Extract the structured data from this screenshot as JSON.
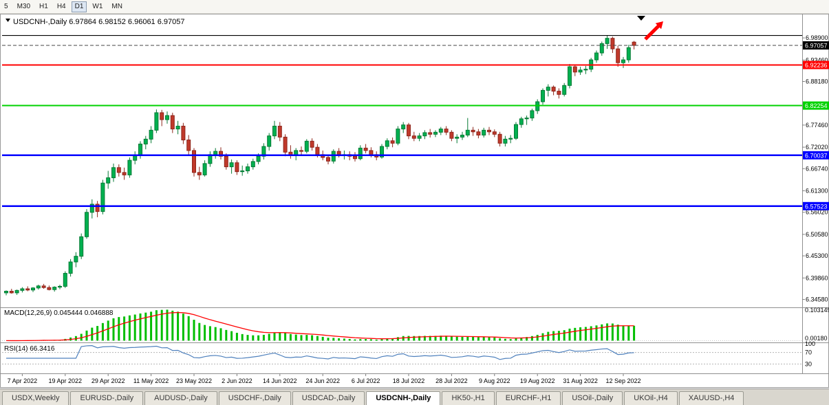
{
  "toolbar": {
    "timeframes": [
      {
        "label": "5",
        "active": false
      },
      {
        "label": "M30",
        "active": false
      },
      {
        "label": "H1",
        "active": false
      },
      {
        "label": "H4",
        "active": false
      },
      {
        "label": "D1",
        "active": true
      },
      {
        "label": "W1",
        "active": false
      },
      {
        "label": "MN",
        "active": false
      }
    ]
  },
  "chart": {
    "title_line": "USDCNH-,Daily 6.97864 6.98152 6.96061 6.97057"
  },
  "tabs": {
    "items": [
      {
        "label": "USDX,Weekly",
        "active": false
      },
      {
        "label": "EURUSD-,Daily",
        "active": false
      },
      {
        "label": "AUDUSD-,Daily",
        "active": false
      },
      {
        "label": "USDCHF-,Daily",
        "active": false
      },
      {
        "label": "USDCAD-,Daily",
        "active": false
      },
      {
        "label": "USDCNH-,Daily",
        "active": true
      },
      {
        "label": "HK50-,H1",
        "active": false
      },
      {
        "label": "EURCHF-,H1",
        "active": false
      },
      {
        "label": "USOil-,Daily",
        "active": false
      },
      {
        "label": "UKOil-,H4",
        "active": false
      },
      {
        "label": "XAUUSD-,H4",
        "active": false
      }
    ]
  },
  "chart_data": {
    "type": "candlestick",
    "symbol": "USDCNH",
    "timeframe": "Daily",
    "quote": {
      "open": 6.97864,
      "high": 6.98152,
      "low": 6.96061,
      "close": 6.97057
    },
    "y_axis": {
      "range": [
        6.328,
        7.045
      ],
      "ticks": [
        "6.98900",
        "6.93460",
        "6.88180",
        "6.77460",
        "6.72020",
        "6.66740",
        "6.61300",
        "6.56020",
        "6.50580",
        "6.45300",
        "6.39860",
        "6.34580"
      ]
    },
    "bid": {
      "price": 6.97057,
      "label": "6.97057",
      "box_color": "#000000"
    },
    "hlines": [
      {
        "price": 6.995,
        "color": "#000000",
        "width": 1.2,
        "label": null
      },
      {
        "price": 6.92236,
        "color": "#FF0000",
        "width": 2,
        "label": "6.92236"
      },
      {
        "price": 6.82254,
        "color": "#00D200",
        "width": 2,
        "label": "6.82254"
      },
      {
        "price": 6.70037,
        "color": "#0000FF",
        "width": 2.5,
        "label": "6.70037"
      },
      {
        "price": 6.57523,
        "color": "#0000FF",
        "width": 2.5,
        "label": "6.57523"
      }
    ],
    "style": {
      "up": {
        "fill": "#00B050",
        "border": "#067A34"
      },
      "down": {
        "fill": "#C0392B",
        "border": "#8E261B"
      }
    },
    "x_labels": [
      {
        "i": 3,
        "text": "7 Apr 2022"
      },
      {
        "i": 11,
        "text": "19 Apr 2022"
      },
      {
        "i": 19,
        "text": "29 Apr 2022"
      },
      {
        "i": 27,
        "text": "11 May 2022"
      },
      {
        "i": 35,
        "text": "23 May 2022"
      },
      {
        "i": 43,
        "text": "2 Jun 2022"
      },
      {
        "i": 51,
        "text": "14 Jun 2022"
      },
      {
        "i": 59,
        "text": "24 Jun 2022"
      },
      {
        "i": 67,
        "text": "6 Jul 2022"
      },
      {
        "i": 75,
        "text": "18 Jul 2022"
      },
      {
        "i": 83,
        "text": "28 Jul 2022"
      },
      {
        "i": 91,
        "text": "9 Aug 2022"
      },
      {
        "i": 99,
        "text": "19 Aug 2022"
      },
      {
        "i": 107,
        "text": "31 Aug 2022"
      },
      {
        "i": 115,
        "text": "12 Sep 2022"
      }
    ],
    "candles": [
      [
        6.362,
        6.368,
        6.356,
        6.366
      ],
      [
        6.366,
        6.372,
        6.36,
        6.362
      ],
      [
        6.362,
        6.37,
        6.357,
        6.368
      ],
      [
        6.368,
        6.376,
        6.363,
        6.372
      ],
      [
        6.372,
        6.378,
        6.366,
        6.369
      ],
      [
        6.369,
        6.376,
        6.364,
        6.374
      ],
      [
        6.374,
        6.382,
        6.37,
        6.379
      ],
      [
        6.379,
        6.384,
        6.372,
        6.375
      ],
      [
        6.375,
        6.38,
        6.368,
        6.37
      ],
      [
        6.37,
        6.378,
        6.365,
        6.376
      ],
      [
        6.376,
        6.382,
        6.371,
        6.378
      ],
      [
        6.378,
        6.415,
        6.374,
        6.41
      ],
      [
        6.41,
        6.445,
        6.402,
        6.438
      ],
      [
        6.438,
        6.462,
        6.425,
        6.452
      ],
      [
        6.452,
        6.508,
        6.445,
        6.5
      ],
      [
        6.5,
        6.568,
        6.495,
        6.56
      ],
      [
        6.56,
        6.592,
        6.545,
        6.58
      ],
      [
        6.58,
        6.588,
        6.548,
        6.562
      ],
      [
        6.562,
        6.64,
        6.555,
        6.632
      ],
      [
        6.632,
        6.662,
        6.618,
        6.645
      ],
      [
        6.645,
        6.68,
        6.635,
        6.67
      ],
      [
        6.67,
        6.678,
        6.648,
        6.658
      ],
      [
        6.658,
        6.67,
        6.64,
        6.652
      ],
      [
        6.652,
        6.695,
        6.645,
        6.688
      ],
      [
        6.688,
        6.71,
        6.678,
        6.7
      ],
      [
        6.7,
        6.735,
        6.692,
        6.728
      ],
      [
        6.728,
        6.748,
        6.715,
        6.74
      ],
      [
        6.74,
        6.772,
        6.73,
        6.762
      ],
      [
        6.762,
        6.813,
        6.755,
        6.805
      ],
      [
        6.805,
        6.812,
        6.772,
        6.788
      ],
      [
        6.788,
        6.808,
        6.778,
        6.798
      ],
      [
        6.798,
        6.805,
        6.755,
        6.765
      ],
      [
        6.765,
        6.785,
        6.752,
        6.772
      ],
      [
        6.772,
        6.78,
        6.728,
        6.738
      ],
      [
        6.738,
        6.75,
        6.702,
        6.712
      ],
      [
        6.712,
        6.718,
        6.648,
        6.658
      ],
      [
        6.658,
        6.672,
        6.64,
        6.652
      ],
      [
        6.652,
        6.688,
        6.648,
        6.68
      ],
      [
        6.68,
        6.71,
        6.672,
        6.702
      ],
      [
        6.702,
        6.718,
        6.692,
        6.71
      ],
      [
        6.71,
        6.72,
        6.69,
        6.698
      ],
      [
        6.698,
        6.705,
        6.665,
        6.672
      ],
      [
        6.672,
        6.69,
        6.655,
        6.682
      ],
      [
        6.682,
        6.688,
        6.652,
        6.66
      ],
      [
        6.66,
        6.675,
        6.65,
        6.662
      ],
      [
        6.662,
        6.68,
        6.655,
        6.672
      ],
      [
        6.672,
        6.692,
        6.665,
        6.685
      ],
      [
        6.685,
        6.705,
        6.678,
        6.698
      ],
      [
        6.698,
        6.73,
        6.69,
        6.722
      ],
      [
        6.722,
        6.755,
        6.712,
        6.748
      ],
      [
        6.748,
        6.785,
        6.74,
        6.772
      ],
      [
        6.772,
        6.782,
        6.735,
        6.745
      ],
      [
        6.745,
        6.752,
        6.698,
        6.708
      ],
      [
        6.708,
        6.725,
        6.692,
        6.7
      ],
      [
        6.7,
        6.718,
        6.688,
        6.712
      ],
      [
        6.712,
        6.722,
        6.7,
        6.71
      ],
      [
        6.71,
        6.74,
        6.705,
        6.735
      ],
      [
        6.735,
        6.742,
        6.712,
        6.72
      ],
      [
        6.72,
        6.728,
        6.695,
        6.702
      ],
      [
        6.702,
        6.712,
        6.688,
        6.695
      ],
      [
        6.695,
        6.702,
        6.678,
        6.686
      ],
      [
        6.686,
        6.715,
        6.68,
        6.71
      ],
      [
        6.71,
        6.718,
        6.695,
        6.7
      ],
      [
        6.7,
        6.712,
        6.69,
        6.702
      ],
      [
        6.702,
        6.71,
        6.688,
        6.698
      ],
      [
        6.698,
        6.708,
        6.685,
        6.692
      ],
      [
        6.692,
        6.725,
        6.688,
        6.718
      ],
      [
        6.718,
        6.728,
        6.705,
        6.712
      ],
      [
        6.712,
        6.72,
        6.695,
        6.702
      ],
      [
        6.702,
        6.71,
        6.688,
        6.696
      ],
      [
        6.696,
        6.728,
        6.692,
        6.722
      ],
      [
        6.722,
        6.742,
        6.715,
        6.736
      ],
      [
        6.736,
        6.744,
        6.72,
        6.73
      ],
      [
        6.73,
        6.772,
        6.725,
        6.765
      ],
      [
        6.765,
        6.782,
        6.755,
        6.775
      ],
      [
        6.775,
        6.78,
        6.74,
        6.748
      ],
      [
        6.748,
        6.758,
        6.735,
        6.742
      ],
      [
        6.742,
        6.755,
        6.735,
        6.748
      ],
      [
        6.748,
        6.762,
        6.74,
        6.756
      ],
      [
        6.756,
        6.765,
        6.744,
        6.752
      ],
      [
        6.752,
        6.762,
        6.745,
        6.757
      ],
      [
        6.757,
        6.77,
        6.75,
        6.765
      ],
      [
        6.765,
        6.772,
        6.75,
        6.757
      ],
      [
        6.757,
        6.762,
        6.735,
        6.742
      ],
      [
        6.742,
        6.752,
        6.73,
        6.745
      ],
      [
        6.745,
        6.758,
        6.738,
        6.75
      ],
      [
        6.75,
        6.792,
        6.745,
        6.762
      ],
      [
        6.762,
        6.77,
        6.748,
        6.758
      ],
      [
        6.758,
        6.765,
        6.742,
        6.75
      ],
      [
        6.75,
        6.768,
        6.744,
        6.762
      ],
      [
        6.762,
        6.77,
        6.75,
        6.758
      ],
      [
        6.758,
        6.764,
        6.745,
        6.752
      ],
      [
        6.752,
        6.758,
        6.722,
        6.73
      ],
      [
        6.73,
        6.748,
        6.722,
        6.74
      ],
      [
        6.74,
        6.75,
        6.73,
        6.742
      ],
      [
        6.742,
        6.782,
        6.738,
        6.776
      ],
      [
        6.776,
        6.795,
        6.768,
        6.79
      ],
      [
        6.79,
        6.798,
        6.775,
        6.792
      ],
      [
        6.792,
        6.815,
        6.785,
        6.81
      ],
      [
        6.81,
        6.838,
        6.802,
        6.832
      ],
      [
        6.832,
        6.865,
        6.825,
        6.86
      ],
      [
        6.86,
        6.875,
        6.845,
        6.868
      ],
      [
        6.868,
        6.872,
        6.848,
        6.858
      ],
      [
        6.858,
        6.865,
        6.84,
        6.85
      ],
      [
        6.85,
        6.878,
        6.845,
        6.872
      ],
      [
        6.872,
        6.925,
        6.865,
        6.918
      ],
      [
        6.918,
        6.922,
        6.895,
        6.905
      ],
      [
        6.905,
        6.918,
        6.898,
        6.91
      ],
      [
        6.91,
        6.92,
        6.9,
        6.912
      ],
      [
        6.912,
        6.94,
        6.905,
        6.935
      ],
      [
        6.935,
        6.958,
        6.928,
        6.952
      ],
      [
        6.952,
        6.98,
        6.945,
        6.975
      ],
      [
        6.975,
        6.995,
        6.962,
        6.988
      ],
      [
        6.988,
        6.992,
        6.952,
        6.962
      ],
      [
        6.962,
        6.97,
        6.918,
        6.928
      ],
      [
        6.928,
        6.942,
        6.915,
        6.935
      ],
      [
        6.935,
        6.972,
        6.928,
        6.965
      ],
      [
        6.97864,
        6.98152,
        6.96061,
        6.97057
      ]
    ],
    "indicators": {
      "macd": {
        "label_text": "MACD(12,26,9) 0.045444 0.046888",
        "params": [
          12,
          26,
          9
        ],
        "axis_max_label": "0.103149",
        "axis_min_label": "0.00180",
        "histogram_color": "#00BE00",
        "signal_color": "#FF0000"
      },
      "rsi": {
        "label_text": "RSI(14) 66.3416",
        "period": 14,
        "value": 66.3416,
        "levels": [
          100,
          70,
          30
        ],
        "color": "#4f81bd"
      }
    },
    "annotations": [
      {
        "type": "up-right-arrow",
        "color": "#FF0000"
      },
      {
        "type": "down-triangle-marker",
        "color": "#000000"
      }
    ]
  }
}
